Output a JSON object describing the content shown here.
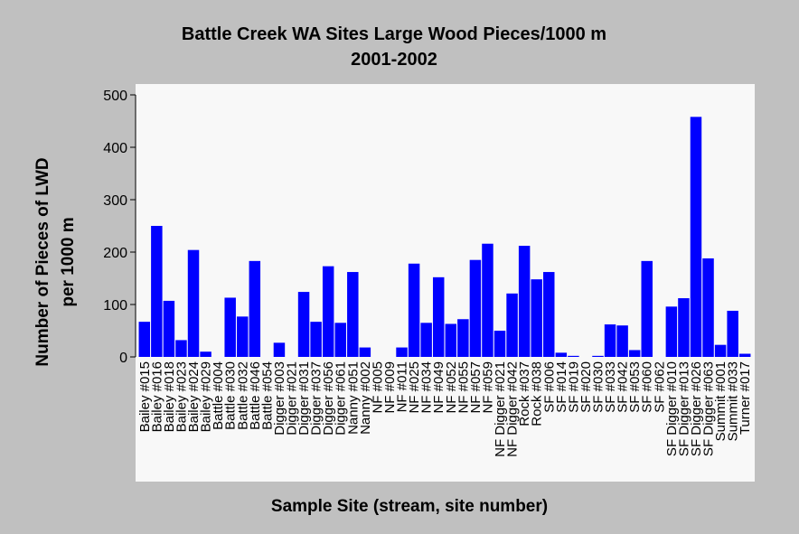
{
  "chart_data": {
    "type": "bar",
    "title": "Battle Creek WA Sites Large Wood Pieces/1000 m",
    "subtitle": "2001-2002",
    "x_label": "Sample Site (stream, site number)",
    "y_label": [
      "Number of Pieces of LWD",
      "per 1000 m"
    ],
    "categories": [
      "Bailey #015",
      "Bailey #016",
      "Bailey #018",
      "Bailey #023",
      "Bailey #024",
      "Bailey #029",
      "Battle #004",
      "Battle #030",
      "Battle #032",
      "Battle #046",
      "Battle #054",
      "Digger #003",
      "Digger #021",
      "Digger #031",
      "Digger #037",
      "Digger #056",
      "Digger #061",
      "Nanny #051",
      "Nanny #002",
      "NF #005",
      "NF #009",
      "NF #011",
      "NF #025",
      "NF #034",
      "NF #049",
      "NF #052",
      "NF #055",
      "NF #057",
      "NF #059",
      "NF Digger #021",
      "NF Digger #042",
      "Rock #037",
      "Rock #038",
      "SF #006",
      "SF #014",
      "SF #019",
      "SF #020",
      "SF #030",
      "SF #033",
      "SF #042",
      "SF #053",
      "SF #060",
      "SF #062",
      "SF Digger #010",
      "SF Digger #013",
      "SF Digger #026",
      "SF Digger #063",
      "Summit #001",
      "Summit #033",
      "Turner #017"
    ],
    "values": [
      67,
      250,
      107,
      32,
      204,
      10,
      0,
      113,
      77,
      183,
      0,
      27,
      0,
      124,
      67,
      173,
      65,
      162,
      18,
      0,
      0,
      18,
      178,
      65,
      152,
      63,
      72,
      185,
      216,
      50,
      121,
      212,
      148,
      162,
      8,
      2,
      0,
      2,
      62,
      60,
      13,
      183,
      0,
      96,
      112,
      458,
      188,
      23,
      88,
      6
    ],
    "color": "#0000ff",
    "ylim": [
      0,
      500
    ],
    "yticks": [
      0,
      100,
      200,
      300,
      400,
      500
    ],
    "grid": false
  }
}
